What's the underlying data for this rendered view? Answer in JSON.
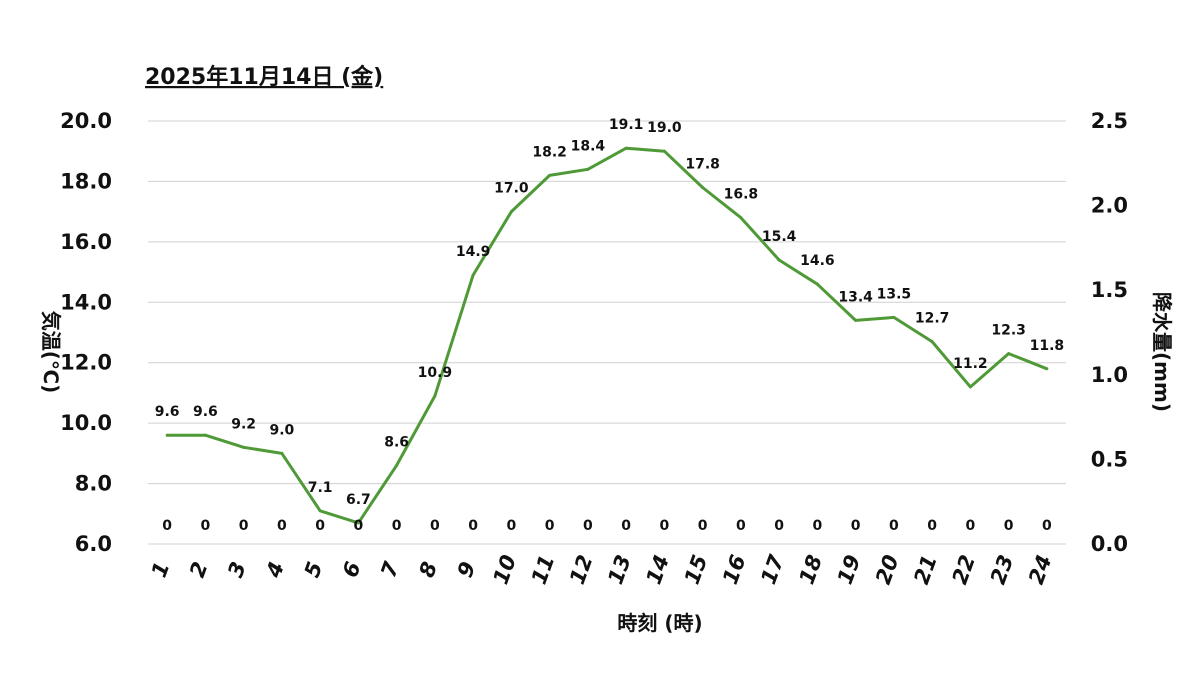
{
  "chart_data": {
    "type": "line",
    "title": "2025年11月14日 (金)",
    "xlabel": "時刻 (時)",
    "ylabel": "気温(℃)",
    "y2label": "降水量(mm)",
    "categories": [
      "1",
      "2",
      "3",
      "4",
      "5",
      "6",
      "7",
      "8",
      "9",
      "10",
      "11",
      "12",
      "13",
      "14",
      "15",
      "16",
      "17",
      "18",
      "19",
      "20",
      "21",
      "22",
      "23",
      "24"
    ],
    "ylim": [
      6.0,
      20.0
    ],
    "y_ticks": [
      "6.0",
      "8.0",
      "10.0",
      "12.0",
      "14.0",
      "16.0",
      "18.0",
      "20.0"
    ],
    "y2lim": [
      0.0,
      2.5
    ],
    "y2_ticks": [
      "0.0",
      "0.5",
      "1.0",
      "1.5",
      "2.0",
      "2.5"
    ],
    "grid": true,
    "series": [
      {
        "axis": "left",
        "color": "#4f9a37",
        "values": [
          9.6,
          9.6,
          9.2,
          9.0,
          7.1,
          6.7,
          8.6,
          10.9,
          14.9,
          17.0,
          18.2,
          18.4,
          19.1,
          19.0,
          17.8,
          16.8,
          15.4,
          14.6,
          13.4,
          13.5,
          12.7,
          11.2,
          12.3,
          11.8
        ],
        "labels": [
          "9.6",
          "9.6",
          "9.2",
          "9.0",
          "7.1",
          "6.7",
          "8.6",
          "10.9",
          "14.9",
          "17.0",
          "18.2",
          "18.4",
          "19.1",
          "19.0",
          "17.8",
          "16.8",
          "15.4",
          "14.6",
          "13.4",
          "13.5",
          "12.7",
          "11.2",
          "12.3",
          "11.8"
        ]
      },
      {
        "axis": "right",
        "color": "#4f9a37",
        "values": [
          0,
          0,
          0,
          0,
          0,
          0,
          0,
          0,
          0,
          0,
          0,
          0,
          0,
          0,
          0,
          0,
          0,
          0,
          0,
          0,
          0,
          0,
          0,
          0
        ],
        "labels": [
          "0",
          "0",
          "0",
          "0",
          "0",
          "0",
          "0",
          "0",
          "0",
          "0",
          "0",
          "0",
          "0",
          "0",
          "0",
          "0",
          "0",
          "0",
          "0",
          "0",
          "0",
          "0",
          "0",
          "0"
        ]
      }
    ]
  }
}
